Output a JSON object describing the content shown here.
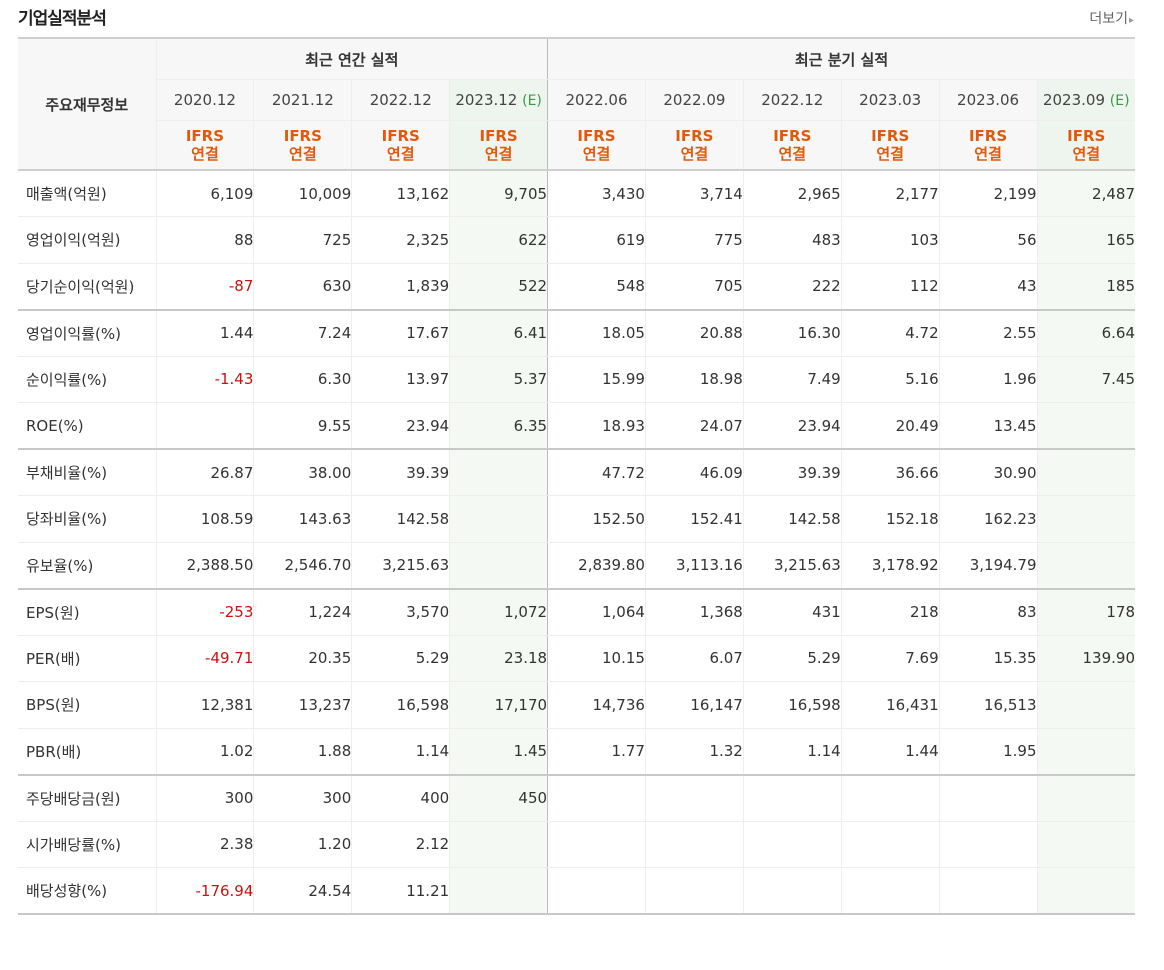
{
  "header": {
    "title": "기업실적분석",
    "more_label": "더보기",
    "more_arrow": "▸"
  },
  "table": {
    "row_header": "주요재무정보",
    "group_annual": "최근 연간 실적",
    "group_quarter": "최근 분기 실적",
    "periods": [
      {
        "label": "2020.12",
        "est": ""
      },
      {
        "label": "2021.12",
        "est": ""
      },
      {
        "label": "2022.12",
        "est": ""
      },
      {
        "label": "2023.12",
        "est": "(E)"
      },
      {
        "label": "2022.06",
        "est": ""
      },
      {
        "label": "2022.09",
        "est": ""
      },
      {
        "label": "2022.12",
        "est": ""
      },
      {
        "label": "2023.03",
        "est": ""
      },
      {
        "label": "2023.06",
        "est": ""
      },
      {
        "label": "2023.09",
        "est": "(E)"
      }
    ],
    "basis_line1": "IFRS",
    "basis_line2": "연결",
    "rows": [
      {
        "label": "매출액(억원)",
        "values": [
          "6,109",
          "10,009",
          "13,162",
          "9,705",
          "3,430",
          "3,714",
          "2,965",
          "2,177",
          "2,199",
          "2,487"
        ]
      },
      {
        "label": "영업이익(억원)",
        "values": [
          "88",
          "725",
          "2,325",
          "622",
          "619",
          "775",
          "483",
          "103",
          "56",
          "165"
        ]
      },
      {
        "label": "당기순이익(억원)",
        "values": [
          "-87",
          "630",
          "1,839",
          "522",
          "548",
          "705",
          "222",
          "112",
          "43",
          "185"
        ]
      },
      {
        "label": "영업이익률(%)",
        "values": [
          "1.44",
          "7.24",
          "17.67",
          "6.41",
          "18.05",
          "20.88",
          "16.30",
          "4.72",
          "2.55",
          "6.64"
        ]
      },
      {
        "label": "순이익률(%)",
        "values": [
          "-1.43",
          "6.30",
          "13.97",
          "5.37",
          "15.99",
          "18.98",
          "7.49",
          "5.16",
          "1.96",
          "7.45"
        ]
      },
      {
        "label": "ROE(%)",
        "values": [
          "",
          "9.55",
          "23.94",
          "6.35",
          "18.93",
          "24.07",
          "23.94",
          "20.49",
          "13.45",
          ""
        ]
      },
      {
        "label": "부채비율(%)",
        "values": [
          "26.87",
          "38.00",
          "39.39",
          "",
          "47.72",
          "46.09",
          "39.39",
          "36.66",
          "30.90",
          ""
        ]
      },
      {
        "label": "당좌비율(%)",
        "values": [
          "108.59",
          "143.63",
          "142.58",
          "",
          "152.50",
          "152.41",
          "142.58",
          "152.18",
          "162.23",
          ""
        ]
      },
      {
        "label": "유보율(%)",
        "values": [
          "2,388.50",
          "2,546.70",
          "3,215.63",
          "",
          "2,839.80",
          "3,113.16",
          "3,215.63",
          "3,178.92",
          "3,194.79",
          ""
        ]
      },
      {
        "label": "EPS(원)",
        "values": [
          "-253",
          "1,224",
          "3,570",
          "1,072",
          "1,064",
          "1,368",
          "431",
          "218",
          "83",
          "178"
        ]
      },
      {
        "label": "PER(배)",
        "values": [
          "-49.71",
          "20.35",
          "5.29",
          "23.18",
          "10.15",
          "6.07",
          "5.29",
          "7.69",
          "15.35",
          "139.90"
        ]
      },
      {
        "label": "BPS(원)",
        "values": [
          "12,381",
          "13,237",
          "16,598",
          "17,170",
          "14,736",
          "16,147",
          "16,598",
          "16,431",
          "16,513",
          ""
        ]
      },
      {
        "label": "PBR(배)",
        "values": [
          "1.02",
          "1.88",
          "1.14",
          "1.45",
          "1.77",
          "1.32",
          "1.14",
          "1.44",
          "1.95",
          ""
        ]
      },
      {
        "label": "주당배당금(원)",
        "values": [
          "300",
          "300",
          "400",
          "450",
          "",
          "",
          "",
          "",
          "",
          ""
        ]
      },
      {
        "label": "시가배당률(%)",
        "values": [
          "2.38",
          "1.20",
          "2.12",
          "",
          "",
          "",
          "",
          "",
          "",
          ""
        ]
      },
      {
        "label": "배당성향(%)",
        "values": [
          "-176.94",
          "24.54",
          "11.21",
          "",
          "",
          "",
          "",
          "",
          "",
          ""
        ]
      }
    ],
    "colors": {
      "negative": "#d01010",
      "ifrs": "#e05a0c",
      "estimate_bg": "#f4f9f3",
      "estimate_mark": "#3a9a4a"
    }
  }
}
